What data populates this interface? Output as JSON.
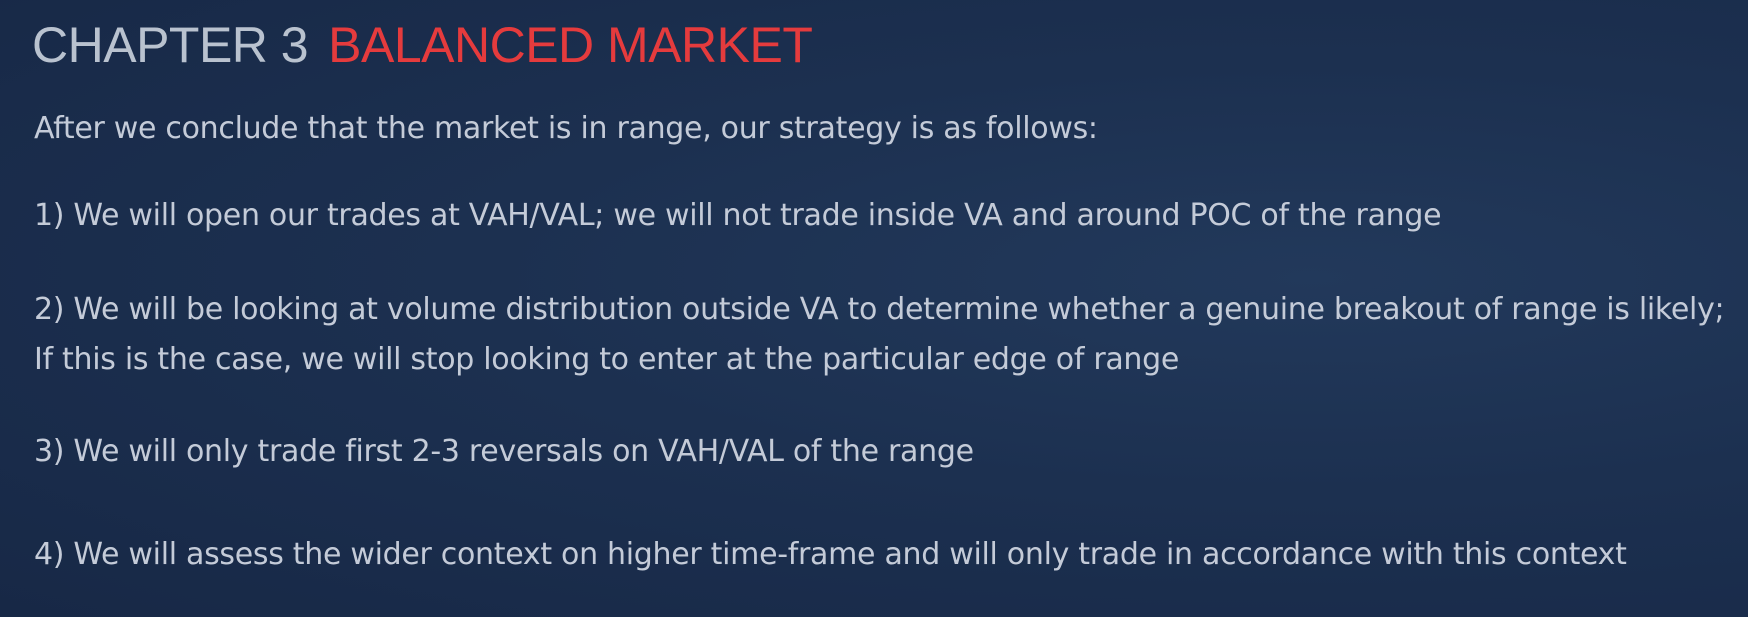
{
  "title": {
    "chapter": "CHAPTER 3",
    "section": "BALANCED MARKET"
  },
  "intro": "After we conclude that the market is in range, our strategy is as follows:",
  "points": [
    {
      "line1": "1) We will open our trades at VAH/VAL; we will not trade inside VA and around POC of the range"
    },
    {
      "line1": "2) We will be looking at volume distribution outside VA to determine whether a genuine breakout of range is likely;",
      "line2": "If this is the case, we will stop looking to enter at the particular edge of range"
    },
    {
      "line1": "3) We will only trade first 2-3 reversals on VAH/VAL of the range"
    },
    {
      "line1": "4) We will assess the wider context on higher time-frame and will only trade in accordance with this context"
    }
  ],
  "colors": {
    "background": "#1c3050",
    "chapter_text": "#b9c2cf",
    "section_accent": "#e53b3d",
    "body_text": "#c4cbd8"
  }
}
